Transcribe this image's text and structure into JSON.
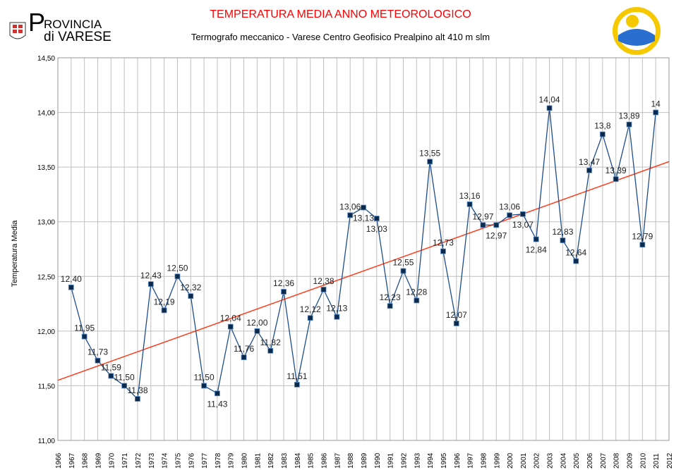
{
  "header": {
    "title": "TEMPERATURA MEDIA ANNO METEOROLOGICO",
    "subtitle": "Termografo meccanico - Varese Centro Geofisico Prealpino  alt 410 m slm",
    "logo_text": "PROVINCIA di VARESE"
  },
  "colors": {
    "series": "#1f4e8c",
    "marker": "#0d2a4a",
    "trend": "#ff4020",
    "grid": "#c0c0c0",
    "title": "#ff0000"
  },
  "chart_data": {
    "type": "line",
    "title": "TEMPERATURA MEDIA ANNO METEOROLOGICO",
    "ylabel": "Temperatura Media",
    "xlabel": "",
    "ylim": [
      11.0,
      14.5
    ],
    "xlim": [
      1966,
      2012
    ],
    "yticks": [
      "11,00",
      "11,50",
      "12,00",
      "12,50",
      "13,00",
      "13,50",
      "14,00",
      "14,50"
    ],
    "grid": true,
    "x": [
      1967,
      1968,
      1969,
      1970,
      1971,
      1972,
      1973,
      1974,
      1975,
      1976,
      1977,
      1978,
      1979,
      1980,
      1981,
      1982,
      1983,
      1984,
      1985,
      1986,
      1987,
      1988,
      1989,
      1990,
      1991,
      1992,
      1993,
      1994,
      1995,
      1996,
      1997,
      1998,
      1999,
      2000,
      2001,
      2002,
      2003,
      2004,
      2005,
      2006,
      2007,
      2008,
      2009,
      2010,
      2011
    ],
    "values": [
      12.4,
      11.95,
      11.73,
      11.59,
      11.5,
      11.38,
      12.43,
      12.19,
      12.5,
      12.32,
      11.5,
      11.43,
      12.04,
      11.76,
      12.0,
      11.82,
      12.36,
      11.51,
      12.12,
      12.38,
      12.13,
      13.06,
      13.13,
      13.03,
      12.23,
      12.55,
      12.28,
      13.55,
      12.73,
      12.07,
      13.16,
      12.97,
      12.97,
      13.06,
      13.07,
      12.84,
      14.04,
      12.83,
      12.64,
      13.47,
      13.8,
      13.39,
      13.89,
      12.79,
      14
    ],
    "labels": [
      "12,40",
      "11,95",
      "11,73",
      "11,59",
      "11,50",
      "11,38",
      "12,43",
      "12,19",
      "12,50",
      "12,32",
      "11,50",
      "11,43",
      "12,04",
      "11,76",
      "12,00",
      "11,82",
      "12,36",
      "11,51",
      "12,12",
      "12,38",
      "12,13",
      "13,06",
      "13,13",
      "13,03",
      "12,23",
      "12,55",
      "12,28",
      "13,55",
      "12,73",
      "12,07",
      "13,16",
      "12,97",
      "12,97",
      "13,06",
      "13,07",
      "12,84",
      "14,04",
      "12,83",
      "12,64",
      "13,47",
      "13,8",
      "13,39",
      "13,89",
      "12,79",
      "14"
    ],
    "trendline": {
      "x": [
        1966,
        2012
      ],
      "y": [
        11.55,
        13.55
      ]
    }
  }
}
